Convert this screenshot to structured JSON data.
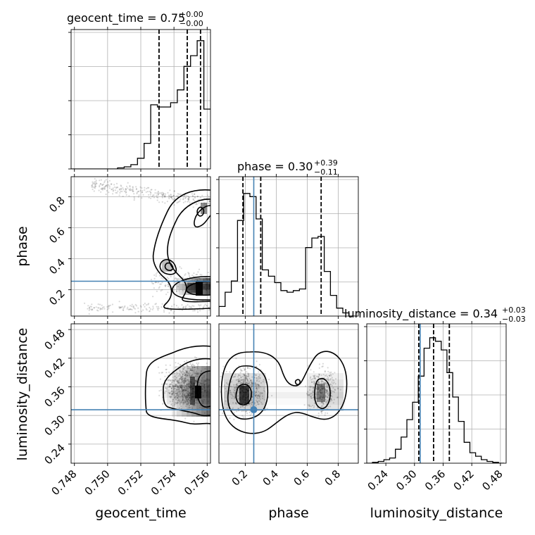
{
  "chart_data": {
    "type": "corner",
    "parameters": [
      "geocent_time",
      "phase",
      "luminosity_distance"
    ],
    "titles": [
      {
        "param": "geocent_time",
        "text": "geocent_time = 0.75",
        "upper": "+0.00",
        "lower": "−0.00"
      },
      {
        "param": "phase",
        "text": "phase = 0.30",
        "upper": "+0.39",
        "lower": "−0.11"
      },
      {
        "param": "luminosity_distance",
        "text": "luminosity_distance = 0.34",
        "upper": "+0.03",
        "lower": "−0.03"
      }
    ],
    "axis_labels": {
      "geocent_time": "geocent_time",
      "phase": "phase",
      "luminosity_distance": "luminosity_distance"
    },
    "ranges": {
      "geocent_time": [
        0.7478,
        0.7562
      ],
      "phase": [
        0.03,
        0.93
      ],
      "luminosity_distance": [
        0.2,
        0.492
      ]
    },
    "ticks": {
      "geocent_time": [
        "0.748",
        "0.750",
        "0.752",
        "0.754",
        "0.756"
      ],
      "phase_y": [
        "0.2",
        "0.4",
        "0.6",
        "0.8"
      ],
      "phase_x": [
        "0.2",
        "0.4",
        "0.6",
        "0.8"
      ],
      "luminosity_distance": [
        "0.24",
        "0.30",
        "0.36",
        "0.42",
        "0.48"
      ]
    },
    "truths": {
      "phase": 0.255,
      "luminosity_distance": 0.312
    },
    "quantiles": {
      "geocent_time": [
        0.7531,
        0.7548,
        0.7556
      ],
      "phase": [
        0.185,
        0.3,
        0.69
      ],
      "luminosity_distance": [
        0.309,
        0.34,
        0.373
      ]
    },
    "hist_geocent_time": {
      "edges": [
        0.7478,
        0.7482,
        0.7486,
        0.749,
        0.7494,
        0.7498,
        0.7502,
        0.7506,
        0.751,
        0.7514,
        0.7518,
        0.7522,
        0.7526,
        0.753,
        0.7534,
        0.7538,
        0.7542,
        0.7546,
        0.755,
        0.7554,
        0.7558,
        0.7562
      ],
      "counts": [
        0,
        0,
        0,
        0,
        0,
        0,
        0,
        0.5,
        1,
        2,
        5,
        12,
        30,
        29,
        29,
        31,
        37,
        48,
        53,
        60,
        28
      ]
    },
    "hist_phase": {
      "edges": [
        0.03,
        0.07,
        0.11,
        0.15,
        0.19,
        0.23,
        0.27,
        0.31,
        0.35,
        0.39,
        0.43,
        0.47,
        0.51,
        0.55,
        0.59,
        0.63,
        0.67,
        0.71,
        0.75,
        0.79,
        0.83,
        0.87,
        0.91
      ],
      "counts": [
        6,
        15,
        22,
        60,
        77,
        75,
        61,
        29,
        25,
        21,
        16,
        15,
        16,
        17,
        43,
        49,
        50,
        28,
        13,
        5,
        2,
        0
      ]
    },
    "hist_luminosity_distance": {
      "edges": [
        0.2,
        0.212,
        0.224,
        0.236,
        0.248,
        0.26,
        0.272,
        0.284,
        0.296,
        0.308,
        0.32,
        0.332,
        0.344,
        0.356,
        0.368,
        0.38,
        0.392,
        0.404,
        0.416,
        0.428,
        0.44,
        0.452,
        0.464,
        0.476,
        0.488
      ],
      "counts": [
        0,
        0.5,
        1,
        2,
        3,
        8,
        15,
        25,
        35,
        50,
        66,
        72,
        70,
        65,
        52,
        38,
        24,
        12,
        6,
        4,
        2,
        1,
        0.5,
        0
      ]
    }
  }
}
